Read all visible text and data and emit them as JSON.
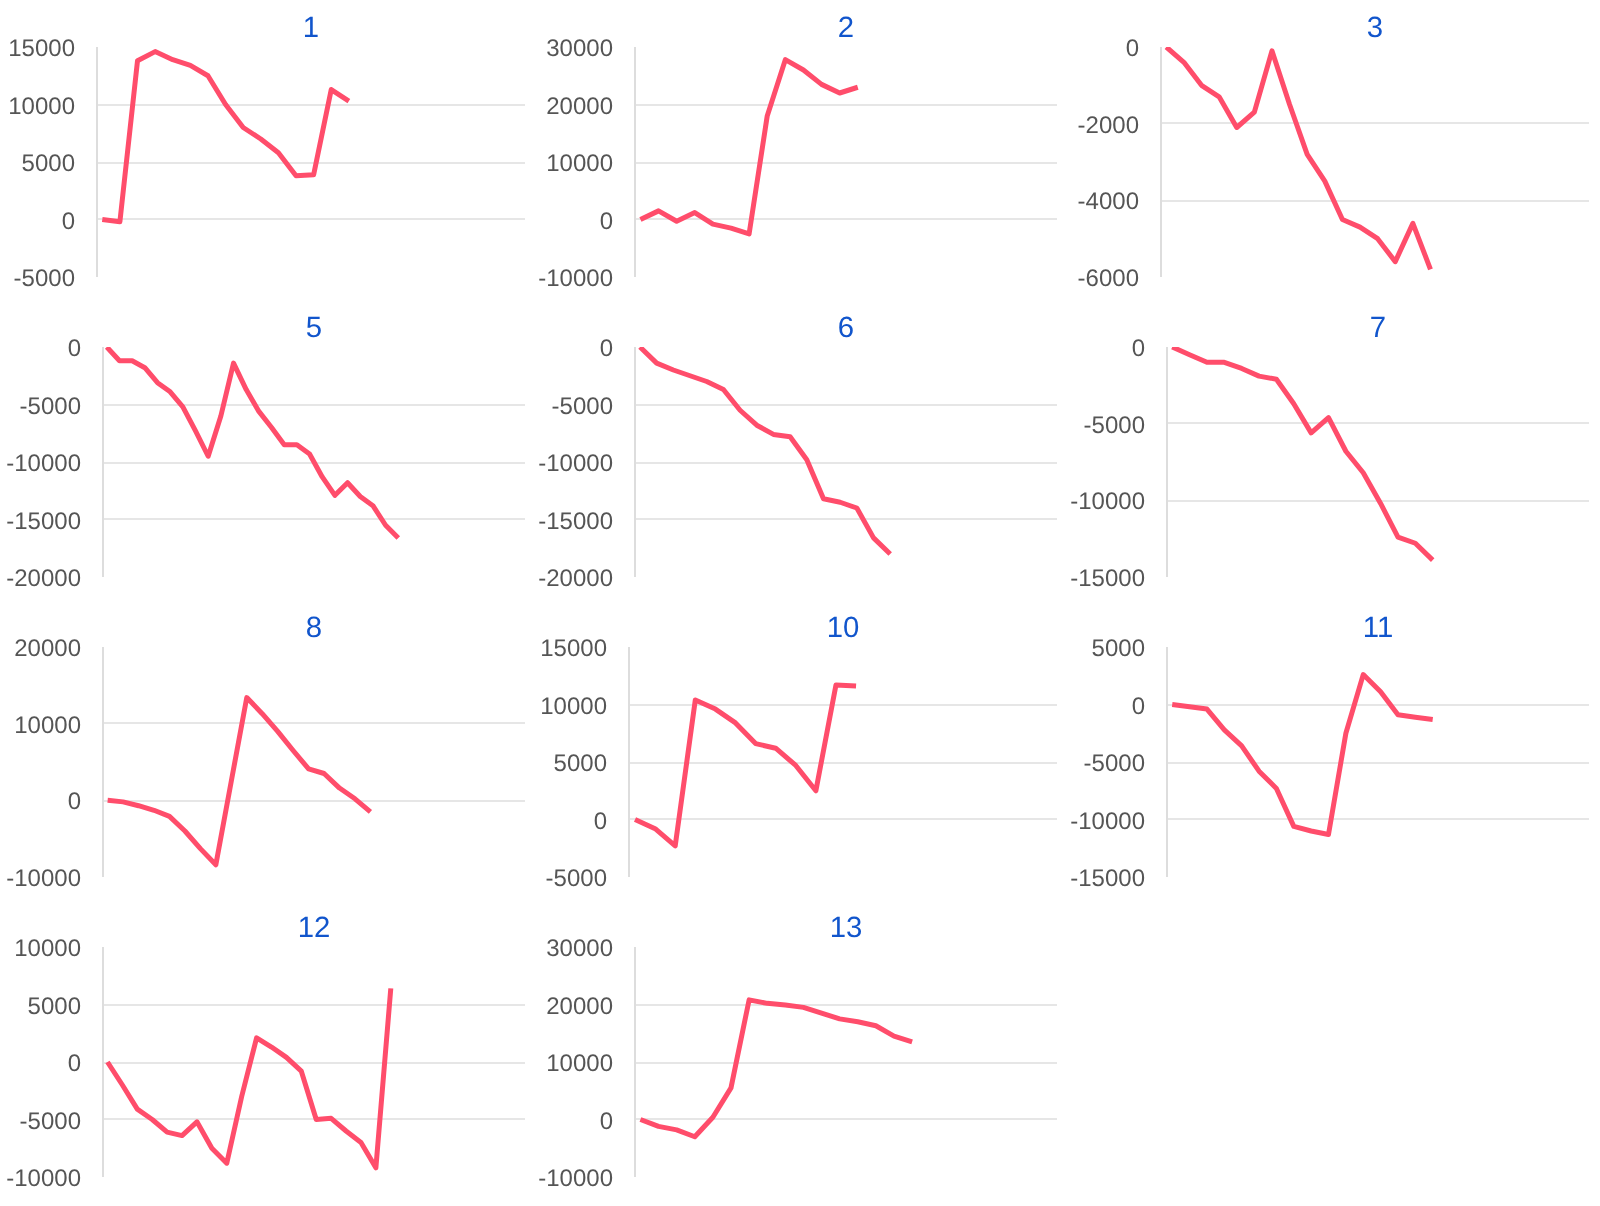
{
  "chart_data": [
    {
      "type": "line",
      "title": "1",
      "categories": [
        null,
        null,
        null,
        null,
        null,
        null,
        null,
        null,
        null,
        null,
        null,
        null,
        null,
        null,
        null,
        null,
        null,
        null,
        null,
        null,
        null,
        null,
        null,
        null,
        null
      ],
      "values": [
        0,
        -200,
        13800,
        14600,
        13900,
        13400,
        12500,
        10000,
        8000,
        7000,
        5800,
        3800,
        3900,
        11300,
        10300,
        null,
        null,
        null,
        null,
        null,
        null,
        null,
        null,
        null,
        null
      ],
      "color": "#ff4d6b",
      "ylim": [
        -5000,
        15000
      ],
      "yticks": [
        -5000,
        0,
        5000,
        10000,
        15000
      ],
      "grid": "y",
      "tick_labels": "y"
    },
    {
      "type": "line",
      "title": "2",
      "categories": [
        null,
        null,
        null,
        null,
        null,
        null,
        null,
        null,
        null,
        null,
        null,
        null,
        null,
        null,
        null,
        null,
        null,
        null,
        null,
        null,
        null,
        null,
        null,
        null
      ],
      "values": [
        0,
        1500,
        -300,
        1200,
        -800,
        -1500,
        -2500,
        18000,
        27800,
        26000,
        23500,
        22000,
        23000,
        null,
        null,
        null,
        null,
        null,
        null,
        null,
        null,
        null,
        null,
        null
      ],
      "color": "#ff4d6b",
      "ylim": [
        -10000,
        30000
      ],
      "yticks": [
        -10000,
        0,
        10000,
        20000,
        30000
      ],
      "grid": "y",
      "tick_labels": "y"
    },
    {
      "type": "line",
      "title": "3",
      "categories": [
        null,
        null,
        null,
        null,
        null,
        null,
        null,
        null,
        null,
        null,
        null,
        null,
        null,
        null,
        null,
        null,
        null,
        null,
        null,
        null,
        null,
        null,
        null,
        null,
        null
      ],
      "values": [
        0,
        -400,
        -1000,
        -1300,
        -2100,
        -1700,
        -100,
        -1500,
        -2800,
        -3500,
        -4500,
        -4700,
        -5000,
        -5600,
        -4600,
        -5800,
        null,
        null,
        null,
        null,
        null,
        null,
        null,
        null,
        null
      ],
      "color": "#ff4d6b",
      "ylim": [
        -6000,
        0
      ],
      "yticks": [
        -6000,
        -4000,
        -2000,
        0
      ],
      "grid": "y",
      "tick_labels": "y"
    },
    {
      "type": "line",
      "title": "5",
      "categories": [
        null,
        null,
        null,
        null,
        null,
        null,
        null,
        null,
        null,
        null,
        null,
        null,
        null,
        null,
        null,
        null,
        null,
        null,
        null,
        null,
        null,
        null,
        null,
        null,
        null,
        null,
        null,
        null,
        null,
        null,
        null,
        null,
        null,
        null
      ],
      "values": [
        0,
        -1200,
        -1200,
        -1800,
        -3100,
        -3900,
        -5200,
        -7300,
        -9500,
        -6000,
        -1400,
        -3700,
        -5600,
        -7000,
        -8500,
        -8500,
        -9300,
        -11300,
        -12900,
        -11800,
        -13000,
        -13800,
        -15500,
        -16600,
        null,
        null,
        null,
        null,
        null,
        null,
        null,
        null,
        null,
        null
      ],
      "color": "#ff4d6b",
      "ylim": [
        -20000,
        0
      ],
      "yticks": [
        -20000,
        -15000,
        -10000,
        -5000,
        0
      ],
      "grid": "y",
      "tick_labels": "y"
    },
    {
      "type": "line",
      "title": "6",
      "categories": [
        null,
        null,
        null,
        null,
        null,
        null,
        null,
        null,
        null,
        null,
        null,
        null,
        null,
        null,
        null,
        null,
        null,
        null,
        null,
        null,
        null,
        null,
        null,
        null,
        null,
        null
      ],
      "values": [
        0,
        -1400,
        -2000,
        -2500,
        -3000,
        -3700,
        -5500,
        -6800,
        -7600,
        -7800,
        -9800,
        -13200,
        -13500,
        -14000,
        -16600,
        -18000,
        null,
        null,
        null,
        null,
        null,
        null,
        null,
        null,
        null,
        null
      ],
      "color": "#ff4d6b",
      "ylim": [
        -20000,
        0
      ],
      "yticks": [
        -20000,
        -15000,
        -10000,
        -5000,
        0
      ],
      "grid": "y",
      "tick_labels": "y"
    },
    {
      "type": "line",
      "title": "7",
      "categories": [
        null,
        null,
        null,
        null,
        null,
        null,
        null,
        null,
        null,
        null,
        null,
        null,
        null,
        null,
        null,
        null,
        null,
        null,
        null,
        null,
        null,
        null,
        null,
        null,
        null
      ],
      "values": [
        0,
        -500,
        -1000,
        -1000,
        -1400,
        -1900,
        -2100,
        -3700,
        -5600,
        -4600,
        -6800,
        -8200,
        -10200,
        -12400,
        -12800,
        -13900,
        null,
        null,
        null,
        null,
        null,
        null,
        null,
        null,
        null
      ],
      "color": "#ff4d6b",
      "ylim": [
        -15000,
        0
      ],
      "yticks": [
        -15000,
        -10000,
        -5000,
        0
      ],
      "grid": "y",
      "tick_labels": "y"
    },
    {
      "type": "line",
      "title": "8",
      "categories": [
        null,
        null,
        null,
        null,
        null,
        null,
        null,
        null,
        null,
        null,
        null,
        null,
        null,
        null,
        null,
        null,
        null,
        null,
        null,
        null,
        null,
        null,
        null,
        null,
        null,
        null,
        null,
        null
      ],
      "values": [
        0,
        -200,
        -700,
        -1300,
        -2100,
        -4000,
        -6300,
        -8400,
        2500,
        13400,
        11300,
        9000,
        6500,
        4100,
        3500,
        1600,
        200,
        -1500,
        null,
        null,
        null,
        null,
        null,
        null,
        null,
        null,
        null,
        null
      ],
      "color": "#ff4d6b",
      "ylim": [
        -10000,
        20000
      ],
      "yticks": [
        -10000,
        0,
        10000,
        20000
      ],
      "grid": "y",
      "tick_labels": "y"
    },
    {
      "type": "line",
      "title": "10",
      "categories": [
        null,
        null,
        null,
        null,
        null,
        null,
        null,
        null,
        null,
        null,
        null,
        null,
        null,
        null,
        null,
        null,
        null,
        null,
        null,
        null,
        null,
        null
      ],
      "values": [
        0,
        -800,
        -2300,
        10400,
        9600,
        8400,
        6600,
        6200,
        4700,
        2500,
        11700,
        11600,
        null,
        null,
        null,
        null,
        null,
        null,
        null,
        null,
        null,
        null
      ],
      "color": "#ff4d6b",
      "ylim": [
        -5000,
        15000
      ],
      "yticks": [
        -5000,
        0,
        5000,
        10000,
        15000
      ],
      "grid": "y",
      "tick_labels": "y"
    },
    {
      "type": "line",
      "title": "11",
      "categories": [
        null,
        null,
        null,
        null,
        null,
        null,
        null,
        null,
        null,
        null,
        null,
        null,
        null,
        null,
        null,
        null,
        null,
        null,
        null,
        null,
        null,
        null,
        null,
        null,
        null
      ],
      "values": [
        0,
        -200,
        -400,
        -2200,
        -3600,
        -5800,
        -7300,
        -10600,
        -11000,
        -11300,
        -2500,
        2600,
        1100,
        -900,
        -1100,
        -1300,
        null,
        null,
        null,
        null,
        null,
        null,
        null,
        null,
        null
      ],
      "color": "#ff4d6b",
      "ylim": [
        -15000,
        5000
      ],
      "yticks": [
        -15000,
        -10000,
        -5000,
        0,
        5000
      ],
      "grid": "y",
      "tick_labels": "y"
    },
    {
      "type": "line",
      "title": "12",
      "categories": [
        null,
        null,
        null,
        null,
        null,
        null,
        null,
        null,
        null,
        null,
        null,
        null,
        null,
        null,
        null,
        null,
        null,
        null,
        null,
        null,
        null,
        null,
        null,
        null,
        null,
        null,
        null,
        null,
        null
      ],
      "values": [
        0,
        -2000,
        -4100,
        -5000,
        -6100,
        -6400,
        -5200,
        -7500,
        -8800,
        -3000,
        2100,
        1300,
        400,
        -800,
        -5000,
        -4900,
        -6000,
        -7000,
        -9200,
        6400,
        null,
        null,
        null,
        null,
        null,
        null,
        null,
        null,
        null
      ],
      "color": "#ff4d6b",
      "ylim": [
        -10000,
        10000
      ],
      "yticks": [
        -10000,
        -5000,
        0,
        5000,
        10000
      ],
      "grid": "y",
      "tick_labels": "y"
    },
    {
      "type": "line",
      "title": "13",
      "categories": [
        null,
        null,
        null,
        null,
        null,
        null,
        null,
        null,
        null,
        null,
        null,
        null,
        null,
        null,
        null,
        null,
        null,
        null,
        null,
        null,
        null,
        null,
        null,
        null
      ],
      "values": [
        0,
        -1200,
        -1800,
        -3000,
        400,
        5500,
        20800,
        20200,
        19900,
        19500,
        18500,
        17500,
        17000,
        16300,
        14500,
        13500,
        null,
        null,
        null,
        null,
        null,
        null,
        null,
        null
      ],
      "color": "#ff4d6b",
      "ylim": [
        -10000,
        30000
      ],
      "yticks": [
        -10000,
        0,
        10000,
        20000,
        30000
      ],
      "grid": "y",
      "tick_labels": "y"
    }
  ]
}
